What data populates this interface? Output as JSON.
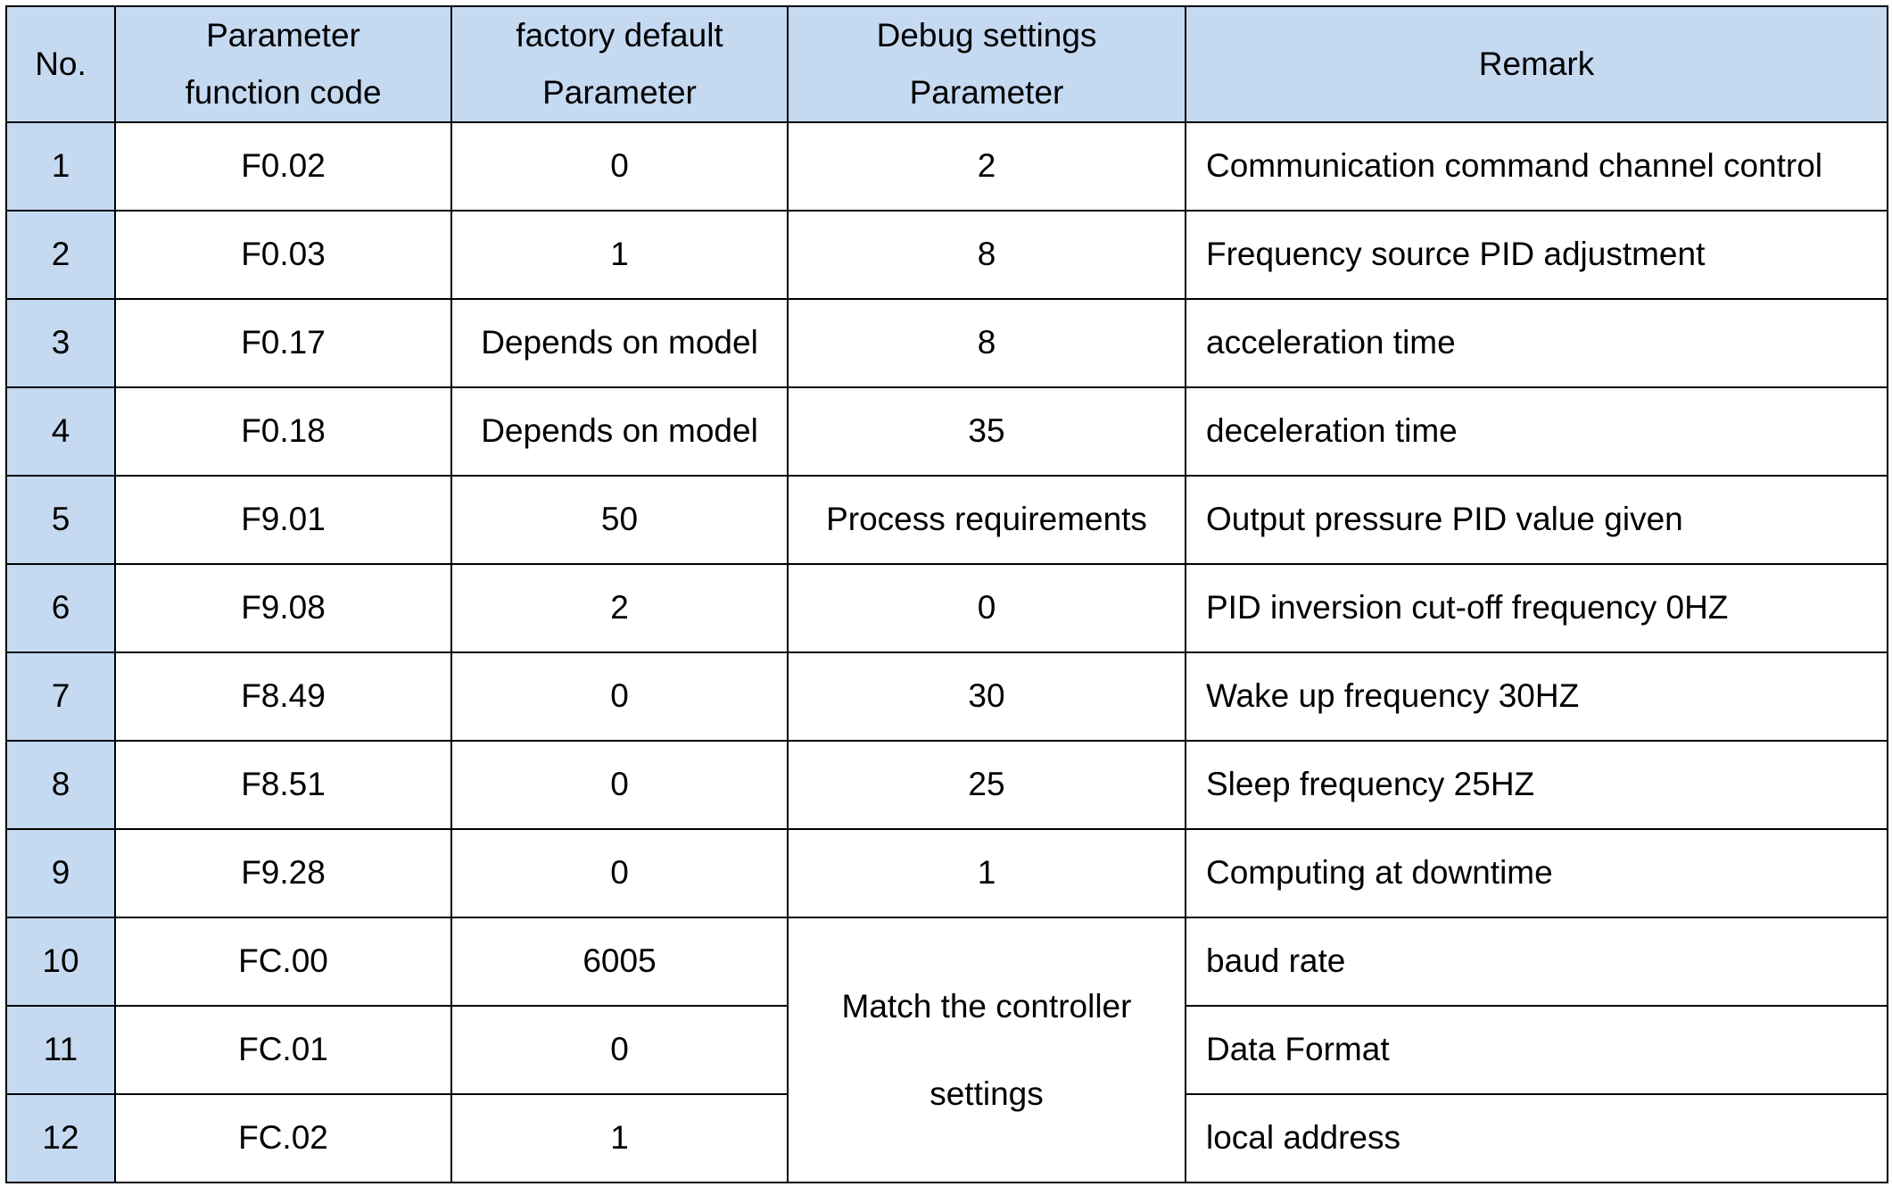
{
  "headers": {
    "no": "No.",
    "function_code": [
      "Parameter",
      "function code"
    ],
    "factory_default": [
      "factory default",
      "Parameter"
    ],
    "debug_settings": [
      "Debug settings",
      "Parameter"
    ],
    "remark": "Remark"
  },
  "rows": [
    {
      "no": "1",
      "code": "F0.02",
      "default": "0",
      "debug": "2",
      "remark": "Communication command channel control"
    },
    {
      "no": "2",
      "code": "F0.03",
      "default": "1",
      "debug": "8",
      "remark": "Frequency source PID adjustment"
    },
    {
      "no": "3",
      "code": "F0.17",
      "default": "Depends on model",
      "debug": "8",
      "remark": "acceleration time"
    },
    {
      "no": "4",
      "code": "F0.18",
      "default": "Depends on model",
      "debug": "35",
      "remark": "deceleration time"
    },
    {
      "no": "5",
      "code": "F9.01",
      "default": "50",
      "debug": "Process requirements",
      "remark": "Output pressure PID value given"
    },
    {
      "no": "6",
      "code": "F9.08",
      "default": "2",
      "debug": "0",
      "remark": "PID inversion cut-off frequency 0HZ"
    },
    {
      "no": "7",
      "code": "F8.49",
      "default": "0",
      "debug": "30",
      "remark": "Wake up frequency 30HZ"
    },
    {
      "no": "8",
      "code": "F8.51",
      "default": "0",
      "debug": "25",
      "remark": "Sleep frequency 25HZ"
    },
    {
      "no": "9",
      "code": "F9.28",
      "default": "0",
      "debug": "1",
      "remark": "Computing at downtime"
    },
    {
      "no": "10",
      "code": "FC.00",
      "default": "6005",
      "remark": "baud rate"
    },
    {
      "no": "11",
      "code": "FC.01",
      "default": "0",
      "remark": "Data Format"
    },
    {
      "no": "12",
      "code": "FC.02",
      "default": "1",
      "remark": "local address"
    }
  ],
  "merged_debug": [
    "Match the controller",
    "settings"
  ],
  "colors": {
    "header_bg": "#c5d9f1",
    "border": "#000000"
  }
}
